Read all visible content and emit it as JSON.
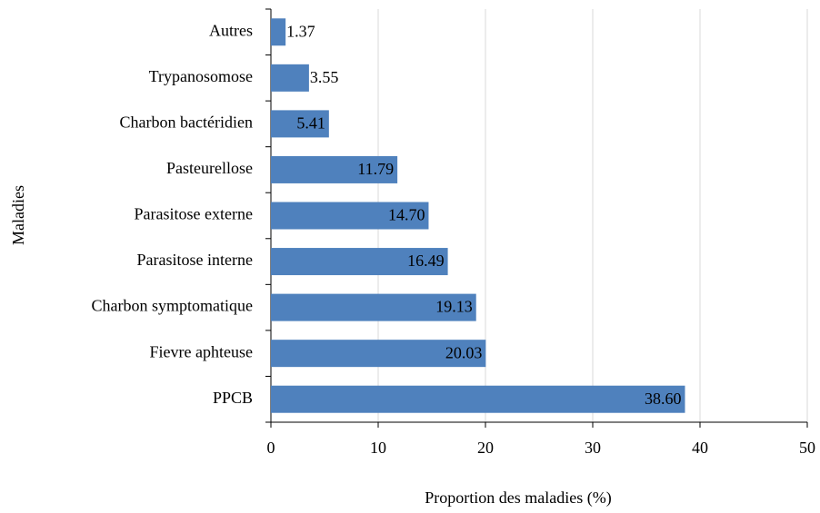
{
  "chart_data": {
    "type": "bar",
    "orientation": "horizontal",
    "xlabel": "Proportion des maladies (%)",
    "ylabel": "Maladies",
    "categories": [
      "Autres",
      "Trypanosomose",
      "Charbon bactéridien",
      "Pasteurellose",
      "Parasitose externe",
      "Parasitose interne",
      "Charbon symptomatique",
      "Fievre aphteuse",
      "PPCB"
    ],
    "values": [
      1.37,
      3.55,
      5.41,
      11.79,
      14.7,
      16.49,
      19.13,
      20.03,
      38.6
    ],
    "value_labels": [
      "1.37",
      "3.55",
      "5.41",
      "11.79",
      "14.70",
      "16.49",
      "19.13",
      "20.03",
      "38.60"
    ],
    "color": "#4f81bd",
    "xlim": [
      0,
      50
    ],
    "xticks": [
      0,
      10,
      20,
      30,
      40,
      50
    ],
    "grid": true
  }
}
